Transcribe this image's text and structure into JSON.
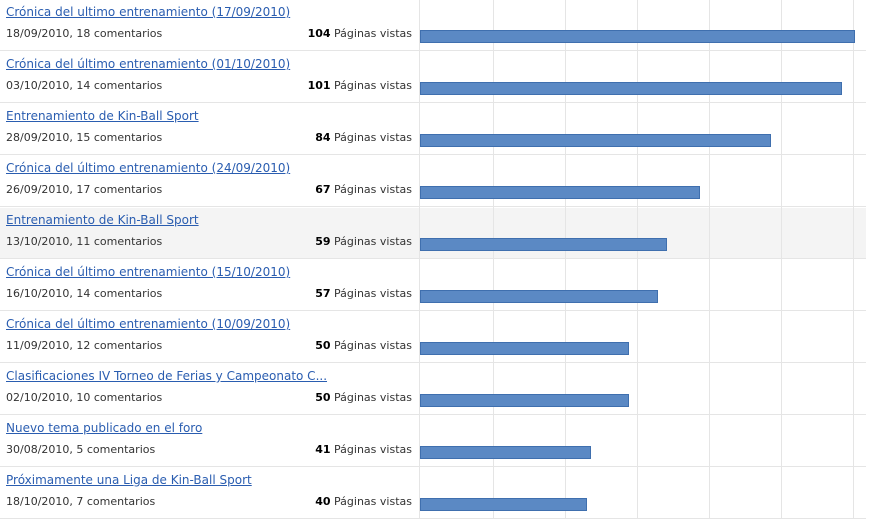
{
  "views_suffix": "Páginas vistas",
  "scale_max": 104,
  "bar_color": "#5b89c4",
  "link_color": "#2a5db0",
  "posts": [
    {
      "title": "Crónica del ultimo entrenamiento (17/09/2010)",
      "meta": "18/09/2010, 18 comentarios",
      "views": 104
    },
    {
      "title": "Crónica del último entrenamiento (01/10/2010)",
      "meta": "03/10/2010, 14 comentarios",
      "views": 101
    },
    {
      "title": "Entrenamiento de Kin-Ball Sport",
      "meta": "28/09/2010, 15 comentarios",
      "views": 84
    },
    {
      "title": "Crónica del último entrenamiento (24/09/2010)",
      "meta": "26/09/2010, 17 comentarios",
      "views": 67
    },
    {
      "title": "Entrenamiento de Kin-Ball Sport",
      "meta": "13/10/2010, 11 comentarios",
      "views": 59,
      "highlighted": true
    },
    {
      "title": "Crónica del último entrenamiento (15/10/2010)",
      "meta": "16/10/2010, 14 comentarios",
      "views": 57
    },
    {
      "title": "Crónica del último entrenamiento (10/09/2010)",
      "meta": "11/09/2010, 12 comentarios",
      "views": 50
    },
    {
      "title": "Clasificaciones IV Torneo de Ferias y Campeonato C...",
      "meta": "02/10/2010, 10 comentarios",
      "views": 50
    },
    {
      "title": "Nuevo tema publicado en el foro",
      "meta": "30/08/2010, 5 comentarios",
      "views": 41
    },
    {
      "title": "Próximamente una Liga de Kin-Ball Sport",
      "meta": "18/10/2010, 7 comentarios",
      "views": 40
    }
  ]
}
